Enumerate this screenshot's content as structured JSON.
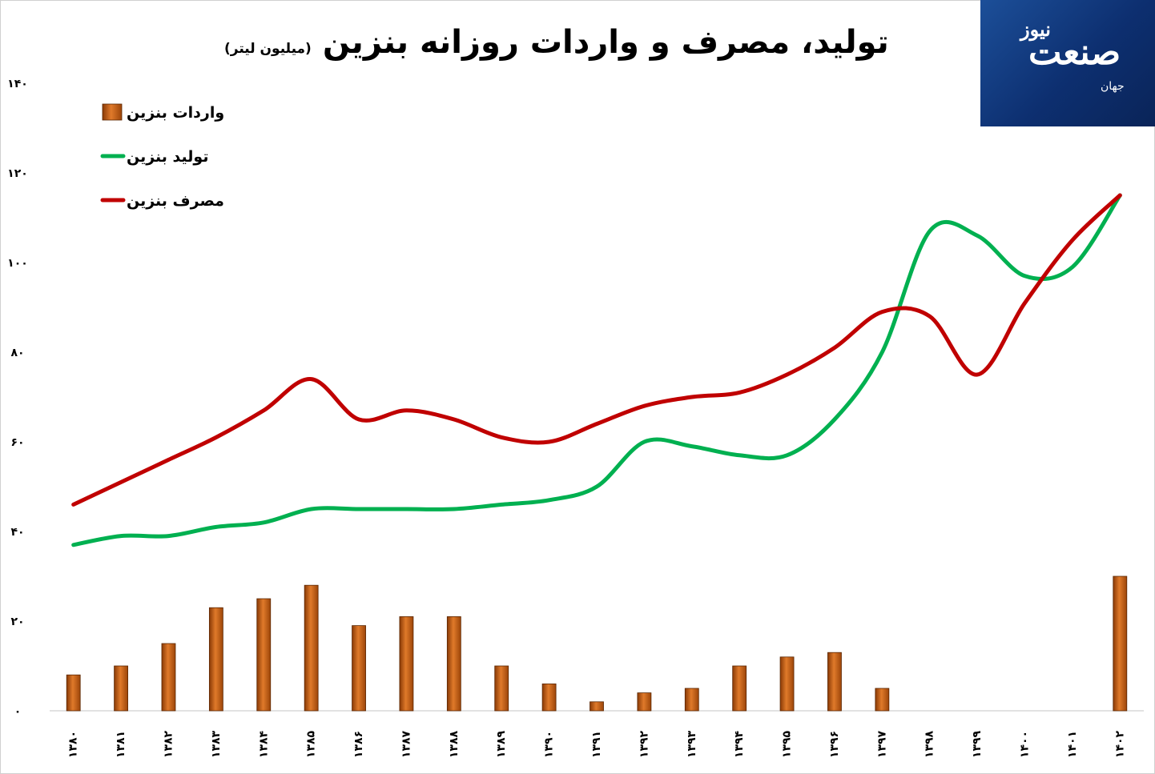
{
  "title": "تولید، مصرف و واردات روزانه بنزین",
  "subtitle": "(میلیون لیتر)",
  "logo": {
    "main": "صنعت",
    "top": "نیوز",
    "small": "جهان"
  },
  "chart_data": {
    "type": "bar+line",
    "categories": [
      "۱۳۸۰",
      "۱۳۸۱",
      "۱۳۸۲",
      "۱۳۸۳",
      "۱۳۸۴",
      "۱۳۸۵",
      "۱۳۸۶",
      "۱۳۸۷",
      "۱۳۸۸",
      "۱۳۸۹",
      "۱۳۹۰",
      "۱۳۹۱",
      "۱۳۹۲",
      "۱۳۹۳",
      "۱۳۹۴",
      "۱۳۹۵",
      "۱۳۹۶",
      "۱۳۹۷",
      "۱۳۹۸",
      "۱۳۹۹",
      "۱۴۰۰",
      "۱۴۰۱",
      "۱۴۰۲"
    ],
    "y_ticks": [
      "۰",
      "۲۰",
      "۴۰",
      "۶۰",
      "۸۰",
      "۱۰۰",
      "۱۲۰",
      "۱۴۰"
    ],
    "ylim": [
      0,
      140
    ],
    "series": [
      {
        "name": "واردات بنزین",
        "type": "bar",
        "color": "#c55a11",
        "values": [
          8,
          10,
          15,
          23,
          25,
          28,
          19,
          21,
          21,
          10,
          6,
          2,
          4,
          5,
          10,
          12,
          13,
          5,
          0,
          0,
          0,
          0,
          30
        ]
      },
      {
        "name": "تولید بنزین",
        "type": "line",
        "color": "#00b050",
        "values": [
          37,
          39,
          39,
          41,
          42,
          45,
          45,
          45,
          45,
          46,
          47,
          50,
          60,
          59,
          57,
          57,
          65,
          80,
          107,
          106,
          97,
          99,
          115
        ]
      },
      {
        "name": "مصرف بنزین",
        "type": "line",
        "color": "#c00000",
        "values": [
          46,
          51,
          56,
          61,
          67,
          74,
          65,
          67,
          65,
          61,
          60,
          64,
          68,
          70,
          71,
          75,
          81,
          89,
          88,
          75,
          91,
          105,
          115
        ]
      }
    ],
    "legend_position": "top-left",
    "grid": false
  }
}
